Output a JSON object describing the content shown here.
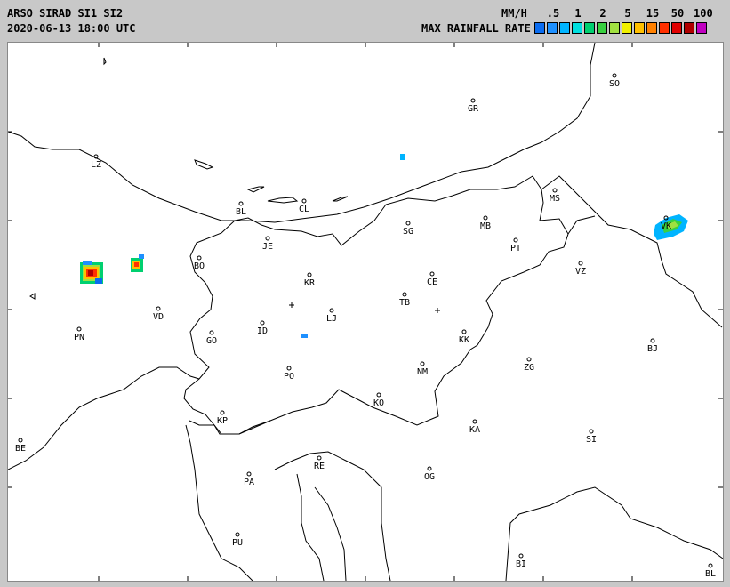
{
  "header": {
    "title": "ARSO SIRAD SI1 SI2",
    "datetime": "2020-06-13 18:00 UTC",
    "unit": "MM/H",
    "scale_title": "MAX RAINFALL RATE"
  },
  "legend": {
    "ticks": [
      ".5",
      "1",
      "2",
      "5",
      "15",
      "50",
      "100"
    ],
    "colors": [
      "#0a6cf0",
      "#1e90ff",
      "#00b4ff",
      "#00e0e0",
      "#00d070",
      "#38d040",
      "#a0e040",
      "#f0f000",
      "#ffc000",
      "#ff8000",
      "#ff3000",
      "#e00000",
      "#b00000",
      "#c000c0"
    ]
  },
  "cities": [
    {
      "code": "SO"
    },
    {
      "code": "GR"
    },
    {
      "code": "LZ"
    },
    {
      "code": "BL"
    },
    {
      "code": "CL"
    },
    {
      "code": "MB"
    },
    {
      "code": "MS"
    },
    {
      "code": "SG"
    },
    {
      "code": "JE"
    },
    {
      "code": "PT"
    },
    {
      "code": "VK"
    },
    {
      "code": "BO"
    },
    {
      "code": "KR"
    },
    {
      "code": "CE"
    },
    {
      "code": "VZ"
    },
    {
      "code": "VD"
    },
    {
      "code": "TB"
    },
    {
      "code": "LJ"
    },
    {
      "code": "PN"
    },
    {
      "code": "GO"
    },
    {
      "code": "ID"
    },
    {
      "code": "KK"
    },
    {
      "code": "BJ"
    },
    {
      "code": "ZG"
    },
    {
      "code": "PO"
    },
    {
      "code": "NM"
    },
    {
      "code": "KO"
    },
    {
      "code": "KP"
    },
    {
      "code": "KA"
    },
    {
      "code": "SI"
    },
    {
      "code": "BE"
    },
    {
      "code": "RE"
    },
    {
      "code": "PA"
    },
    {
      "code": "OG"
    },
    {
      "code": "PU"
    },
    {
      "code": "BI"
    },
    {
      "code": "BL"
    }
  ]
}
